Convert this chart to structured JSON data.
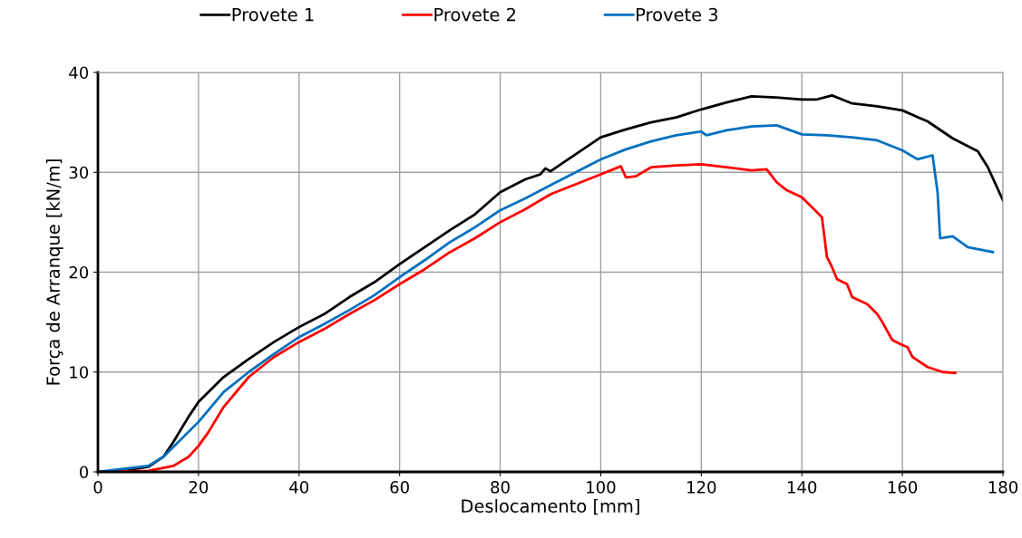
{
  "chart_data": {
    "type": "line",
    "xlabel": "Deslocamento [mm]",
    "ylabel": "Força de Arranque [kN/m]",
    "xlim": [
      0,
      180
    ],
    "ylim": [
      0,
      40
    ],
    "xticks": [
      0,
      20,
      40,
      60,
      80,
      100,
      120,
      140,
      160,
      180
    ],
    "yticks": [
      0,
      10,
      20,
      30,
      40
    ],
    "grid": true,
    "legend": "top",
    "marker": "none",
    "line_style": "solid",
    "series": [
      {
        "name": "Provete 1",
        "color": "#000000",
        "x": [
          0,
          5,
          10,
          13,
          15,
          18,
          20,
          25,
          30,
          35,
          40,
          45,
          50,
          55,
          60,
          65,
          70,
          75,
          80,
          85,
          88,
          89,
          90,
          95,
          100,
          105,
          110,
          115,
          120,
          125,
          130,
          135,
          140,
          143,
          146,
          150,
          155,
          160,
          165,
          170,
          175,
          177,
          180
        ],
        "values": [
          0,
          0.1,
          0.5,
          1.5,
          3,
          5.5,
          7,
          9.5,
          11.3,
          13,
          14.5,
          15.8,
          17.5,
          19,
          20.8,
          22.5,
          24.2,
          25.8,
          28,
          29.3,
          29.8,
          30.4,
          30.1,
          31.8,
          33.5,
          34.3,
          35,
          35.5,
          36.3,
          37,
          37.6,
          37.5,
          37.3,
          37.3,
          37.7,
          36.9,
          36.6,
          36.2,
          35.1,
          33.4,
          32.1,
          30.5,
          27.2
        ]
      },
      {
        "name": "Provete 2",
        "color": "#ff0000",
        "x": [
          0,
          10,
          15,
          18,
          20,
          22,
          25,
          30,
          35,
          40,
          45,
          50,
          55,
          60,
          65,
          70,
          75,
          80,
          85,
          90,
          95,
          100,
          104,
          105,
          107,
          110,
          115,
          120,
          125,
          130,
          133,
          135,
          137,
          140,
          141,
          143,
          144,
          145,
          146,
          147,
          149,
          150,
          153,
          155,
          156,
          158,
          160,
          161,
          162,
          165,
          168,
          170.5
        ],
        "values": [
          0,
          0.1,
          0.6,
          1.5,
          2.6,
          4,
          6.5,
          9.5,
          11.5,
          13,
          14.3,
          15.8,
          17.2,
          18.8,
          20.3,
          22,
          23.4,
          25,
          26.3,
          27.8,
          28.8,
          29.8,
          30.6,
          29.5,
          29.6,
          30.5,
          30.7,
          30.8,
          30.5,
          30.2,
          30.3,
          29,
          28.2,
          27.5,
          27,
          26,
          25.5,
          21.5,
          20.5,
          19.3,
          18.8,
          17.5,
          16.8,
          15.8,
          15,
          13.2,
          12.7,
          12.5,
          11.5,
          10.5,
          10,
          9.9
        ]
      },
      {
        "name": "Provete 3",
        "color": "#0070c0",
        "x": [
          0,
          10,
          13,
          15,
          20,
          25,
          30,
          35,
          40,
          45,
          50,
          55,
          60,
          65,
          70,
          75,
          80,
          85,
          90,
          95,
          100,
          105,
          110,
          115,
          120,
          121,
          125,
          130,
          135,
          140,
          145,
          150,
          155,
          160,
          163,
          166,
          167,
          167.5,
          170,
          173,
          178
        ],
        "values": [
          0,
          0.6,
          1.5,
          2.5,
          5,
          8,
          10,
          11.8,
          13.5,
          14.8,
          16.2,
          17.7,
          19.5,
          21.2,
          23,
          24.5,
          26.2,
          27.4,
          28.7,
          30,
          31.3,
          32.3,
          33.1,
          33.7,
          34.1,
          33.7,
          34.2,
          34.6,
          34.7,
          33.8,
          33.7,
          33.5,
          33.2,
          32.2,
          31.3,
          31.7,
          28,
          23.4,
          23.6,
          22.5,
          22
        ]
      }
    ]
  }
}
